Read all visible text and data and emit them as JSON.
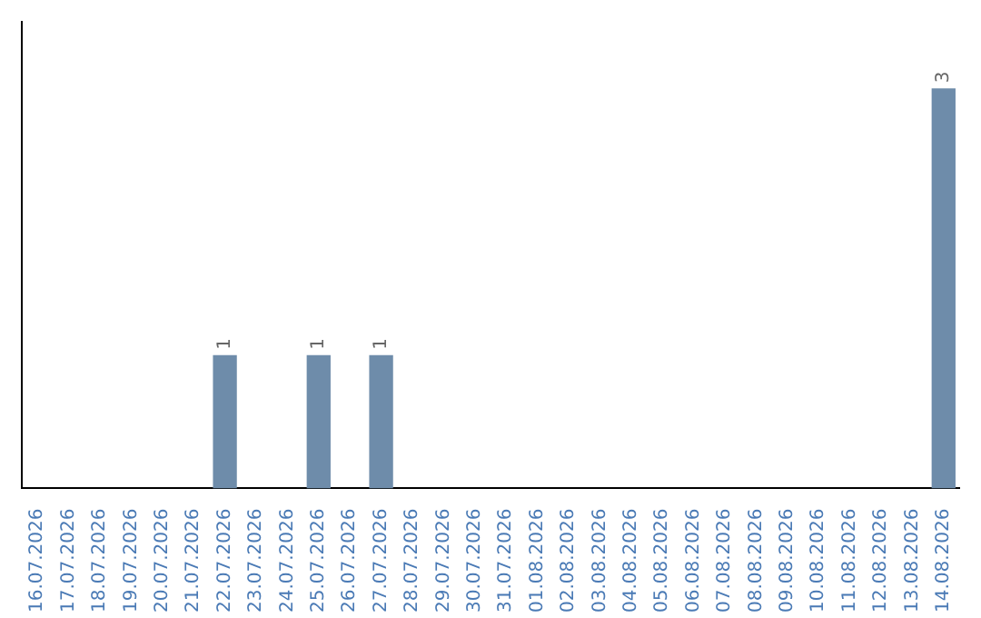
{
  "chart_data": {
    "type": "bar",
    "categories": [
      "16.07.2026",
      "17.07.2026",
      "18.07.2026",
      "19.07.2026",
      "20.07.2026",
      "21.07.2026",
      "22.07.2026",
      "23.07.2026",
      "24.07.2026",
      "25.07.2026",
      "26.07.2026",
      "27.07.2026",
      "28.07.2026",
      "29.07.2026",
      "30.07.2026",
      "31.07.2026",
      "01.08.2026",
      "02.08.2026",
      "03.08.2026",
      "04.08.2026",
      "05.08.2026",
      "06.08.2026",
      "07.08.2026",
      "08.08.2026",
      "09.08.2026",
      "10.08.2026",
      "11.08.2026",
      "12.08.2026",
      "13.08.2026",
      "14.08.2026"
    ],
    "values": [
      0,
      0,
      0,
      0,
      0,
      0,
      1,
      0,
      0,
      1,
      0,
      1,
      0,
      0,
      0,
      0,
      0,
      0,
      0,
      0,
      0,
      0,
      0,
      0,
      0,
      0,
      0,
      0,
      0,
      3
    ],
    "value_labels": [
      null,
      null,
      null,
      null,
      null,
      null,
      "1",
      null,
      null,
      "1",
      null,
      "1",
      null,
      null,
      null,
      null,
      null,
      null,
      null,
      null,
      null,
      null,
      null,
      null,
      null,
      null,
      null,
      null,
      null,
      "3"
    ],
    "color": "#6e8caa",
    "grid": false,
    "legend": false,
    "tick_labels": "x"
  }
}
